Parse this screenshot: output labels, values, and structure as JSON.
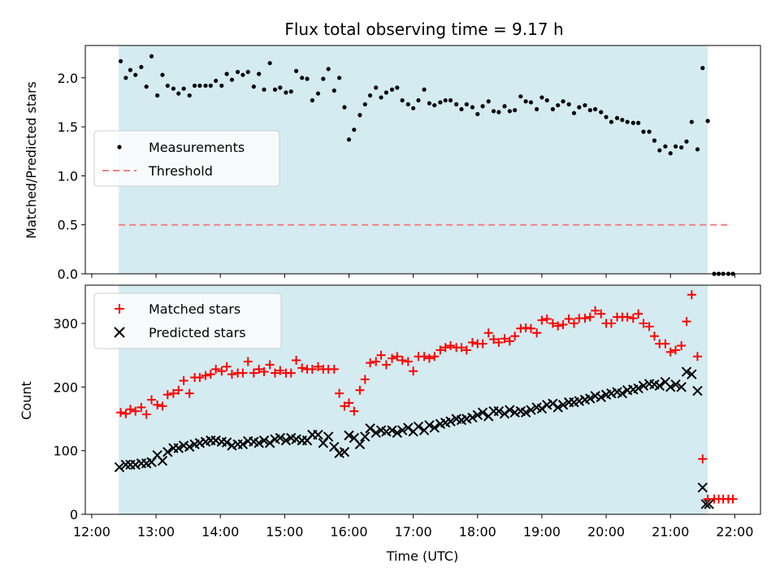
{
  "chart_data": {
    "type": "scatter",
    "title": "Flux total observing time = 9.17 h",
    "xlabel": "Time (UTC)",
    "x_ticks": [
      "12:00",
      "13:00",
      "14:00",
      "15:00",
      "16:00",
      "17:00",
      "18:00",
      "19:00",
      "20:00",
      "21:00",
      "22:00"
    ],
    "xlim": [
      11.9,
      22.4
    ],
    "shaded_span": [
      12.42,
      21.58
    ],
    "shaded_color": "#d4ebf1",
    "top": {
      "ylabel": "Matched/Predicted stars",
      "ylim": [
        0,
        2.33
      ],
      "y_ticks": [
        "0.0",
        "0.5",
        "1.0",
        "1.5",
        "2.0"
      ],
      "y_tick_values": [
        0,
        0.5,
        1.0,
        1.5,
        2.0
      ],
      "legend": {
        "placement": "center-left",
        "items": [
          "Measurements",
          "Threshold"
        ]
      },
      "threshold": {
        "name": "Threshold",
        "value": 0.5,
        "x_range": [
          12.42,
          21.95
        ],
        "color": "#f08080"
      },
      "measurements": {
        "name": "Measurements",
        "color": "#000000",
        "x": [
          12.45,
          12.53,
          12.6,
          12.68,
          12.77,
          12.85,
          12.93,
          13.02,
          13.1,
          13.18,
          13.27,
          13.35,
          13.43,
          13.52,
          13.6,
          13.68,
          13.77,
          13.85,
          13.93,
          14.02,
          14.1,
          14.18,
          14.27,
          14.35,
          14.43,
          14.52,
          14.6,
          14.68,
          14.77,
          14.85,
          14.93,
          15.02,
          15.1,
          15.18,
          15.27,
          15.35,
          15.43,
          15.52,
          15.6,
          15.68,
          15.77,
          15.85,
          15.93,
          16.0,
          16.08,
          16.17,
          16.25,
          16.33,
          16.42,
          16.5,
          16.58,
          16.67,
          16.75,
          16.83,
          16.92,
          17.0,
          17.08,
          17.17,
          17.25,
          17.33,
          17.42,
          17.5,
          17.58,
          17.67,
          17.75,
          17.83,
          17.92,
          18.0,
          18.08,
          18.17,
          18.25,
          18.33,
          18.42,
          18.5,
          18.58,
          18.67,
          18.75,
          18.83,
          18.92,
          19.0,
          19.08,
          19.17,
          19.25,
          19.33,
          19.42,
          19.5,
          19.58,
          19.67,
          19.75,
          19.83,
          19.92,
          20.0,
          20.08,
          20.17,
          20.25,
          20.33,
          20.42,
          20.5,
          20.58,
          20.67,
          20.75,
          20.83,
          20.92,
          21.0,
          21.08,
          21.17,
          21.25,
          21.33,
          21.42,
          21.5,
          21.58,
          21.68,
          21.75,
          21.82,
          21.9,
          21.97
        ],
        "y": [
          2.17,
          2.0,
          2.08,
          2.03,
          2.11,
          1.91,
          2.22,
          1.82,
          2.03,
          1.92,
          1.89,
          1.84,
          1.89,
          1.82,
          1.92,
          1.92,
          1.92,
          1.92,
          1.97,
          1.92,
          2.04,
          1.98,
          2.06,
          2.03,
          2.06,
          1.91,
          2.04,
          1.88,
          2.15,
          1.88,
          1.9,
          1.85,
          1.86,
          2.07,
          2.0,
          1.99,
          1.77,
          1.84,
          1.99,
          2.09,
          1.87,
          2.0,
          1.7,
          1.37,
          1.47,
          1.62,
          1.73,
          1.82,
          1.9,
          1.8,
          1.85,
          1.88,
          1.9,
          1.77,
          1.73,
          1.69,
          1.77,
          1.88,
          1.74,
          1.72,
          1.75,
          1.77,
          1.77,
          1.73,
          1.68,
          1.73,
          1.7,
          1.63,
          1.71,
          1.76,
          1.66,
          1.65,
          1.71,
          1.66,
          1.67,
          1.81,
          1.76,
          1.75,
          1.68,
          1.8,
          1.77,
          1.68,
          1.72,
          1.76,
          1.73,
          1.64,
          1.7,
          1.72,
          1.67,
          1.68,
          1.65,
          1.6,
          1.55,
          1.59,
          1.57,
          1.55,
          1.54,
          1.54,
          1.45,
          1.45,
          1.36,
          1.26,
          1.3,
          1.23,
          1.3,
          1.29,
          1.35,
          1.55,
          1.27,
          2.1,
          1.56,
          0.0,
          0.0,
          0.0,
          0.0,
          0.0
        ]
      }
    },
    "bottom": {
      "ylabel": "Count",
      "ylim": [
        0,
        360
      ],
      "y_ticks": [
        "0",
        "100",
        "200",
        "300"
      ],
      "y_tick_values": [
        0,
        100,
        200,
        300
      ],
      "legend": {
        "placement": "top-left",
        "items": [
          "Matched stars",
          "Predicted stars"
        ]
      },
      "matched": {
        "name": "Matched stars",
        "color": "#ff0000",
        "marker": "plus",
        "x": [
          12.45,
          12.53,
          12.6,
          12.68,
          12.77,
          12.85,
          12.93,
          13.02,
          13.1,
          13.18,
          13.27,
          13.35,
          13.43,
          13.52,
          13.6,
          13.68,
          13.77,
          13.85,
          13.93,
          14.02,
          14.1,
          14.18,
          14.27,
          14.35,
          14.43,
          14.52,
          14.6,
          14.68,
          14.77,
          14.85,
          14.93,
          15.02,
          15.1,
          15.18,
          15.27,
          15.35,
          15.43,
          15.52,
          15.6,
          15.68,
          15.77,
          15.85,
          15.93,
          16.0,
          16.08,
          16.17,
          16.25,
          16.33,
          16.42,
          16.5,
          16.58,
          16.67,
          16.75,
          16.83,
          16.92,
          17.0,
          17.08,
          17.17,
          17.25,
          17.33,
          17.42,
          17.5,
          17.58,
          17.67,
          17.75,
          17.83,
          17.92,
          18.0,
          18.08,
          18.17,
          18.25,
          18.33,
          18.42,
          18.5,
          18.58,
          18.67,
          18.75,
          18.83,
          18.92,
          19.0,
          19.08,
          19.17,
          19.25,
          19.33,
          19.42,
          19.5,
          19.58,
          19.67,
          19.75,
          19.83,
          19.92,
          20.0,
          20.08,
          20.17,
          20.25,
          20.33,
          20.42,
          20.5,
          20.58,
          20.67,
          20.75,
          20.83,
          20.92,
          21.0,
          21.08,
          21.17,
          21.25,
          21.33,
          21.42,
          21.5,
          21.58,
          21.68,
          21.75,
          21.82,
          21.9,
          21.97
        ],
        "y": [
          160,
          158,
          165,
          162,
          168,
          157,
          180,
          172,
          170,
          188,
          190,
          195,
          210,
          190,
          215,
          215,
          218,
          220,
          228,
          225,
          232,
          220,
          222,
          222,
          240,
          222,
          228,
          224,
          235,
          222,
          226,
          222,
          222,
          242,
          230,
          228,
          228,
          232,
          228,
          228,
          228,
          190,
          170,
          175,
          162,
          195,
          212,
          238,
          240,
          250,
          235,
          245,
          248,
          242,
          240,
          225,
          248,
          248,
          245,
          248,
          258,
          262,
          265,
          262,
          262,
          258,
          270,
          268,
          268,
          285,
          275,
          270,
          276,
          272,
          280,
          292,
          293,
          292,
          285,
          305,
          307,
          300,
          296,
          298,
          307,
          300,
          308,
          308,
          310,
          320,
          315,
          300,
          300,
          310,
          310,
          310,
          308,
          315,
          300,
          295,
          280,
          268,
          268,
          255,
          258,
          265,
          303,
          345,
          248,
          87,
          24,
          24,
          24,
          24,
          24,
          24
        ]
      },
      "predicted": {
        "name": "Predicted stars",
        "color": "#000000",
        "marker": "x",
        "x": [
          12.43,
          12.53,
          12.6,
          12.68,
          12.77,
          12.85,
          12.93,
          13.02,
          13.1,
          13.18,
          13.27,
          13.35,
          13.43,
          13.52,
          13.6,
          13.68,
          13.77,
          13.85,
          13.93,
          14.02,
          14.1,
          14.18,
          14.27,
          14.35,
          14.43,
          14.52,
          14.6,
          14.68,
          14.77,
          14.85,
          14.93,
          15.02,
          15.1,
          15.18,
          15.27,
          15.35,
          15.43,
          15.52,
          15.6,
          15.68,
          15.77,
          15.85,
          15.93,
          16.0,
          16.08,
          16.17,
          16.25,
          16.33,
          16.42,
          16.5,
          16.58,
          16.67,
          16.75,
          16.83,
          16.92,
          17.0,
          17.08,
          17.17,
          17.25,
          17.33,
          17.42,
          17.5,
          17.58,
          17.67,
          17.75,
          17.83,
          17.92,
          18.0,
          18.08,
          18.17,
          18.25,
          18.33,
          18.42,
          18.5,
          18.58,
          18.67,
          18.75,
          18.83,
          18.92,
          19.0,
          19.08,
          19.17,
          19.25,
          19.33,
          19.42,
          19.5,
          19.58,
          19.67,
          19.75,
          19.83,
          19.92,
          20.0,
          20.08,
          20.17,
          20.25,
          20.33,
          20.42,
          20.5,
          20.58,
          20.67,
          20.75,
          20.83,
          20.92,
          21.0,
          21.08,
          21.17,
          21.25,
          21.33,
          21.42,
          21.5,
          21.55,
          21.6
        ],
        "y": [
          74,
          78,
          78,
          78,
          80,
          80,
          82,
          93,
          84,
          98,
          104,
          104,
          108,
          106,
          110,
          112,
          114,
          116,
          116,
          114,
          113,
          108,
          110,
          110,
          115,
          114,
          112,
          116,
          112,
          118,
          120,
          116,
          120,
          118,
          116,
          116,
          125,
          125,
          112,
          122,
          106,
          96,
          98,
          124,
          120,
          110,
          122,
          135,
          128,
          132,
          130,
          132,
          128,
          132,
          136,
          130,
          138,
          132,
          140,
          136,
          142,
          144,
          146,
          150,
          148,
          150,
          152,
          156,
          160,
          154,
          162,
          162,
          158,
          164,
          160,
          162,
          160,
          164,
          168,
          166,
          172,
          174,
          168,
          172,
          176,
          176,
          178,
          180,
          182,
          186,
          184,
          188,
          190,
          192,
          190,
          195,
          196,
          198,
          202,
          205,
          204,
          202,
          208,
          200,
          204,
          200,
          224,
          220,
          194,
          42,
          16,
          16
        ]
      }
    }
  }
}
